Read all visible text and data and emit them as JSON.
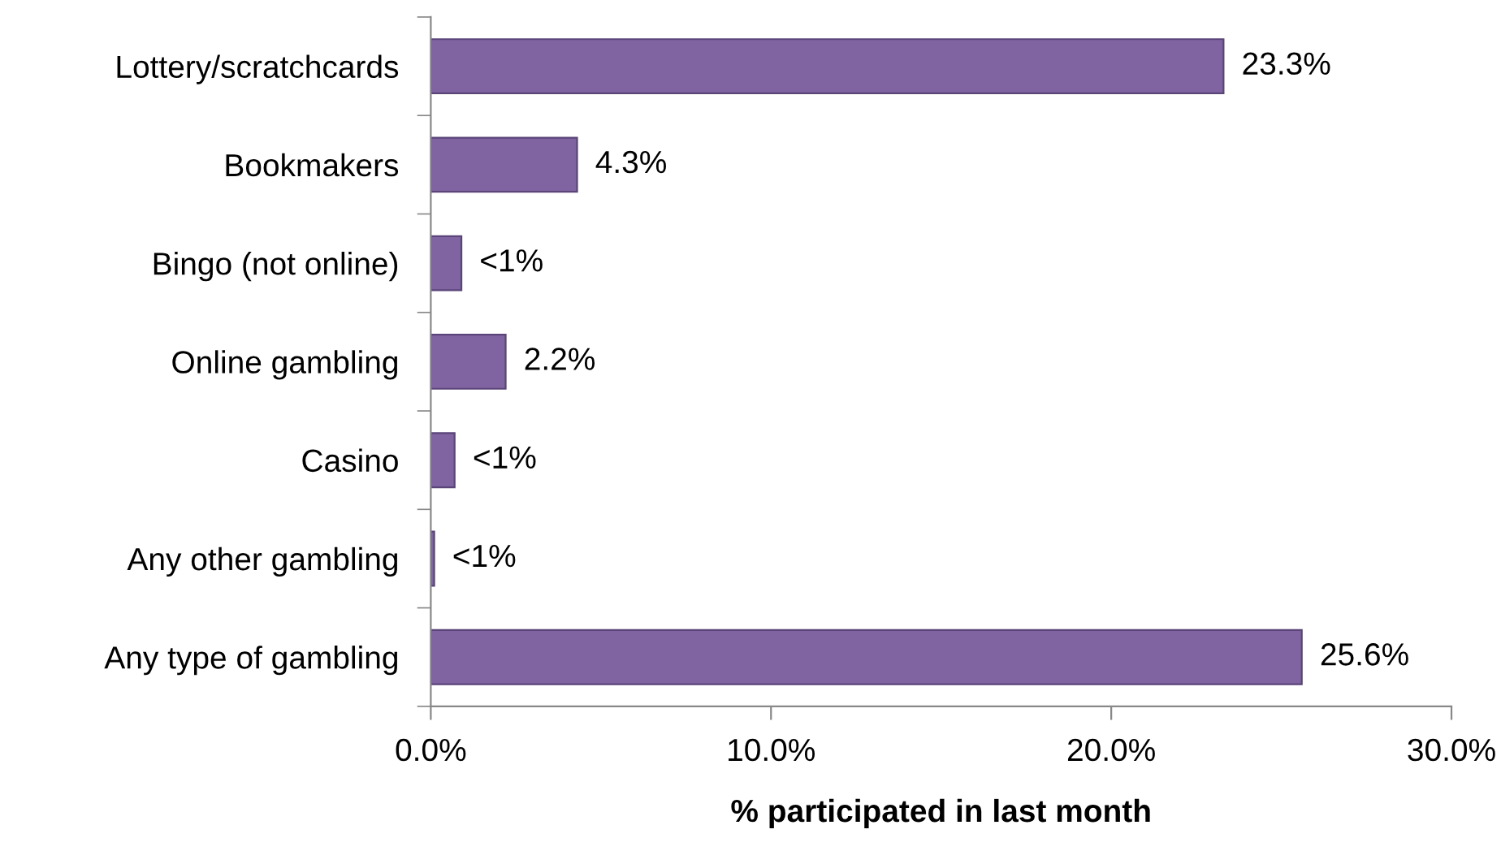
{
  "chart_data": {
    "type": "bar",
    "orientation": "horizontal",
    "xlabel": "% participated in last month",
    "categories": [
      "Lottery/scratchcards",
      "Bookmakers",
      "Bingo (not online)",
      "Online gambling",
      "Casino",
      "Any other gambling",
      "Any type of gambling"
    ],
    "values": [
      23.3,
      4.3,
      0.9,
      2.2,
      0.7,
      0.1,
      25.6
    ],
    "value_labels": [
      "23.3%",
      "4.3%",
      "<1%",
      "2.2%",
      "<1%",
      "<1%",
      "25.6%"
    ],
    "color": "#8064a2",
    "xlim": [
      0,
      30
    ],
    "xticks": [
      {
        "value": 0,
        "label": "0.0%"
      },
      {
        "value": 10,
        "label": "10.0%"
      },
      {
        "value": 20,
        "label": "20.0%"
      },
      {
        "value": 30,
        "label": "30.0%"
      }
    ],
    "grid": false,
    "legend": false
  }
}
